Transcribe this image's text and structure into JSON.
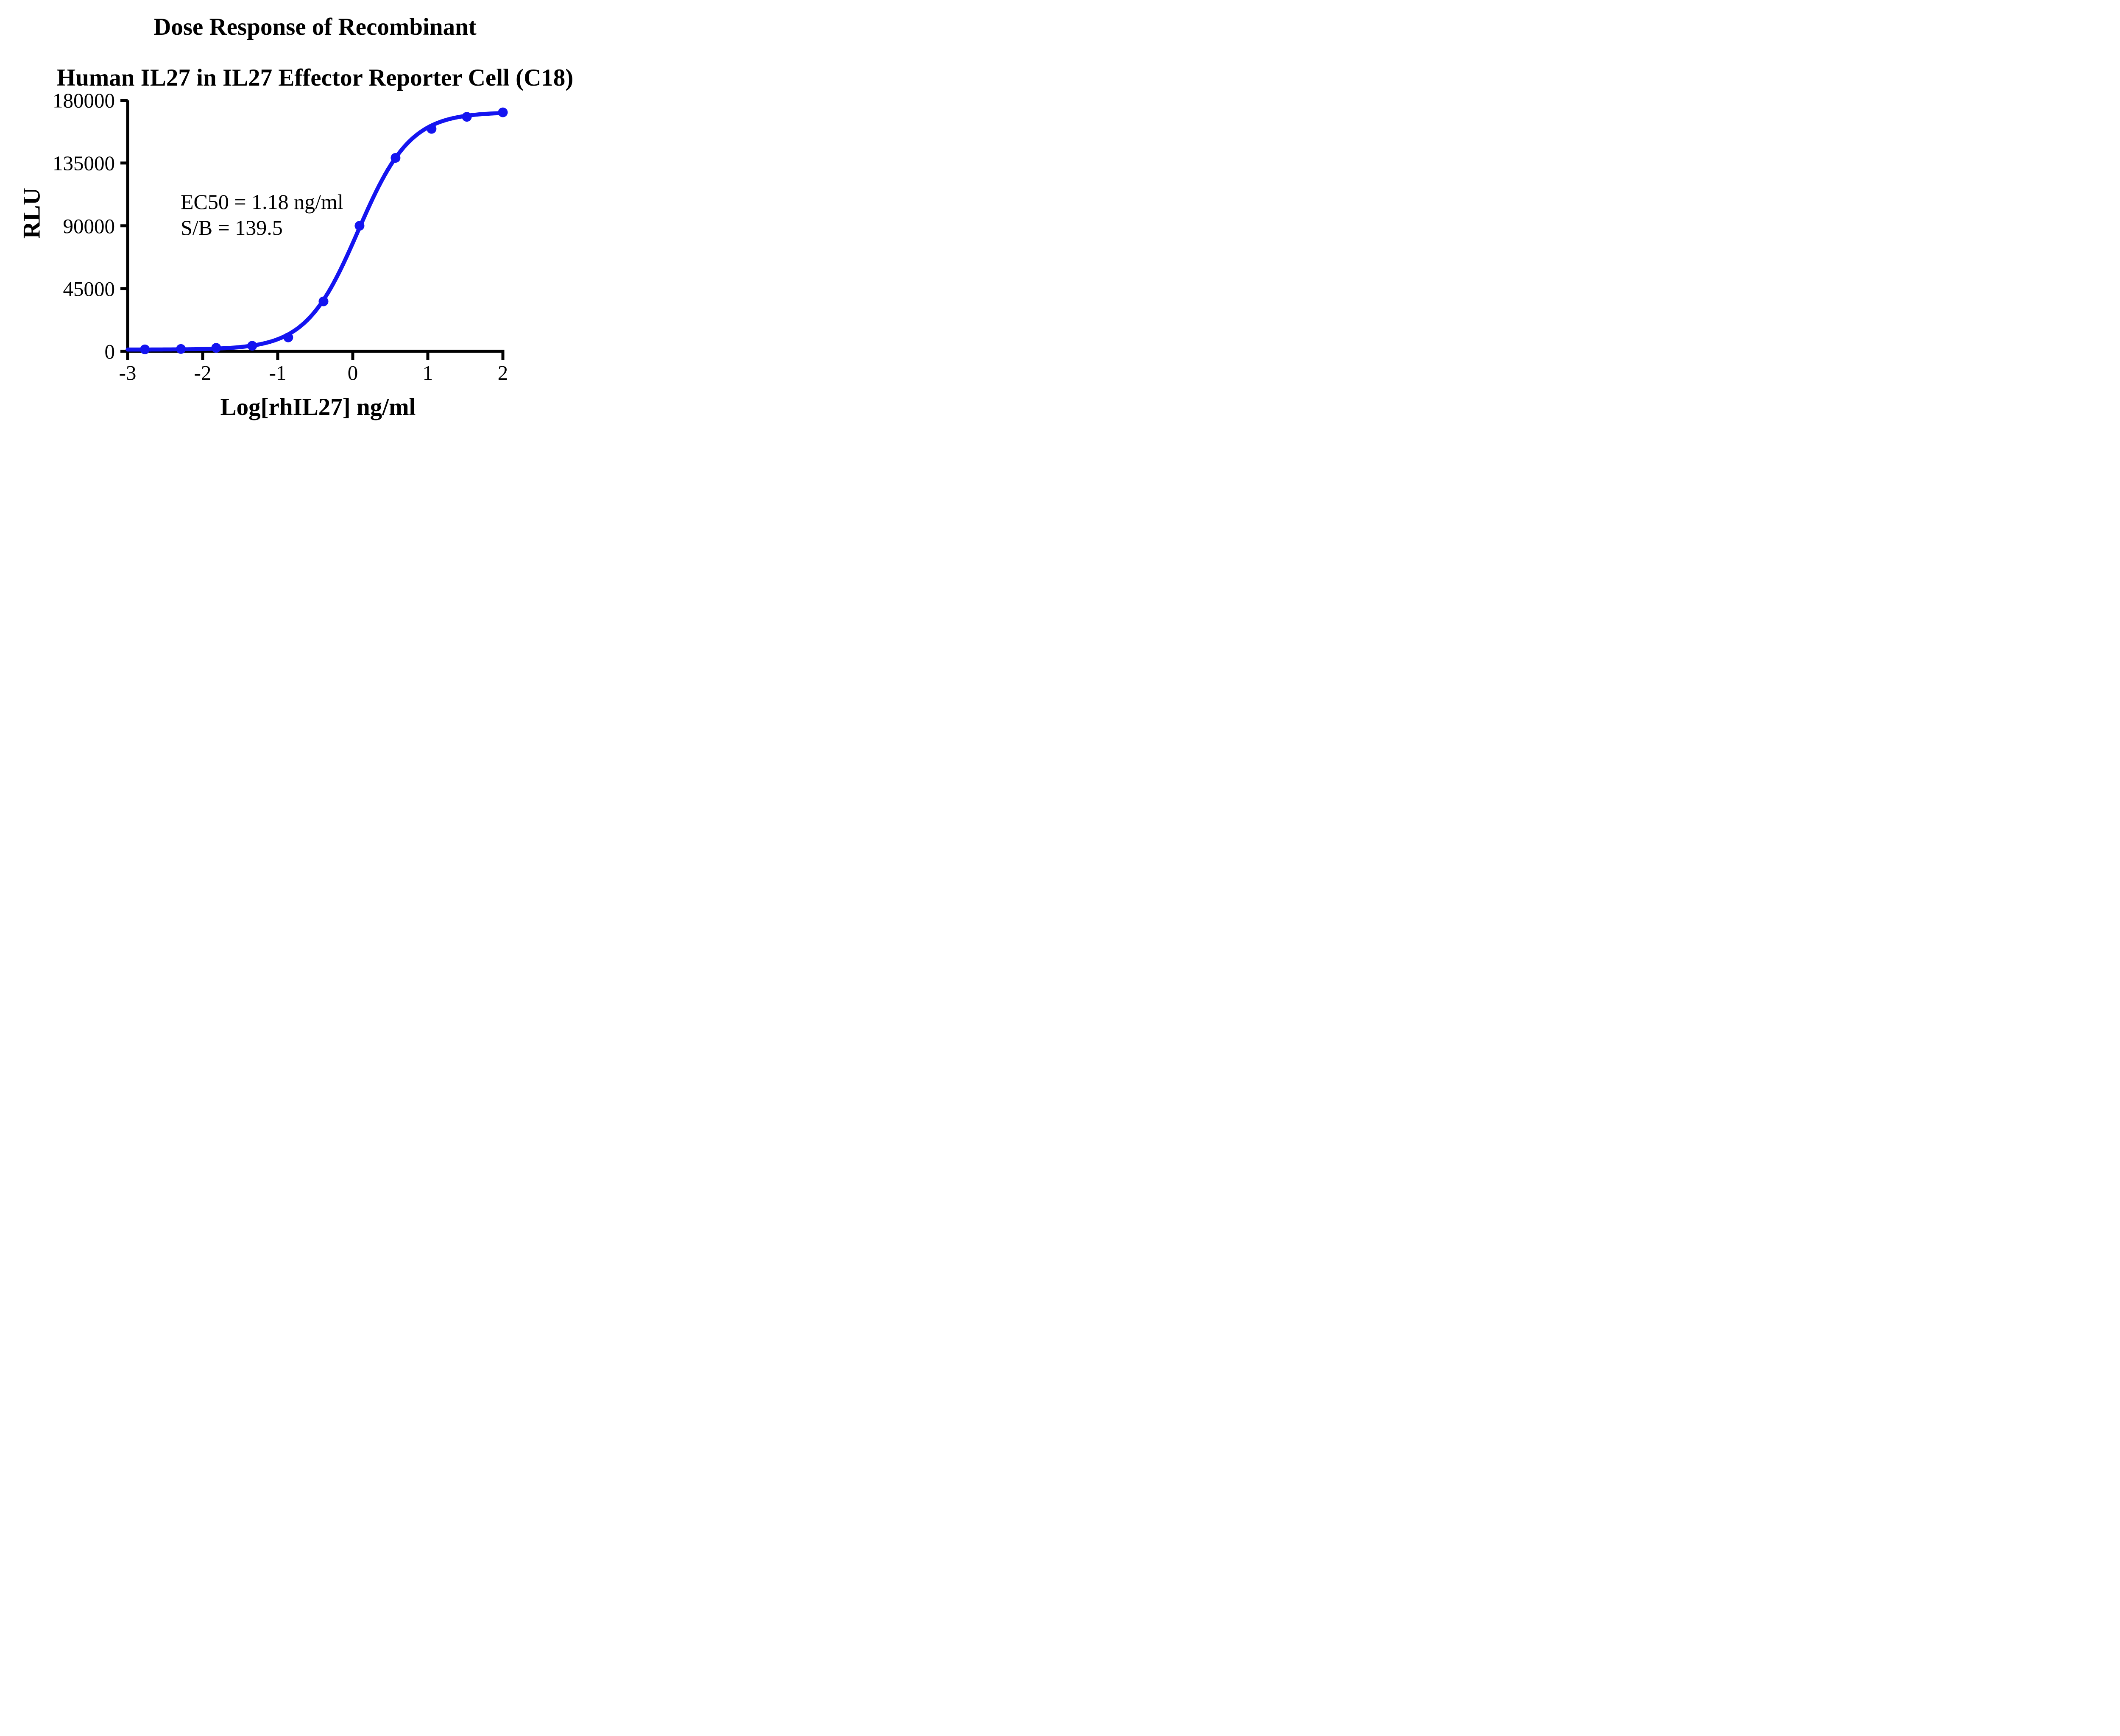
{
  "title": {
    "line1": "Dose Response of Recombinant",
    "line2": "Human IL27 in IL27 Effector Reporter Cell (C18)"
  },
  "annotation": {
    "line1": "EC50 = 1.18 ng/ml",
    "line2": "S/B = 139.5"
  },
  "colors": {
    "curve": "#1414f0",
    "axis": "#000000",
    "text": "#000000",
    "background": "#ffffff"
  },
  "chart_data": {
    "type": "scatter",
    "title": "Dose Response of Recombinant Human IL27 in IL27 Effector Reporter Cell (C18)",
    "xlabel": "Log[rhIL27] ng/ml",
    "ylabel": "RLU",
    "xlim": [
      -3,
      2
    ],
    "ylim": [
      0,
      180000
    ],
    "x_ticks": [
      -3,
      -2,
      -1,
      0,
      1,
      2
    ],
    "y_ticks": [
      0,
      45000,
      90000,
      135000,
      180000
    ],
    "grid": false,
    "legend": false,
    "annotations": [
      "EC50 = 1.18 ng/ml",
      "S/B = 139.5"
    ],
    "series": [
      {
        "name": "rhIL27",
        "marker": "circle",
        "color": "#1414f0",
        "x": [
          -2.77,
          -2.29,
          -1.82,
          -1.34,
          -0.86,
          -0.39,
          0.09,
          0.57,
          1.05,
          1.52,
          2.0
        ],
        "y": [
          1400,
          1700,
          2500,
          4000,
          10000,
          35800,
          90000,
          138700,
          159500,
          168100,
          171300
        ]
      }
    ],
    "fit_curve": {
      "model": "4PL",
      "bottom": 1250,
      "top": 171500,
      "log_ec50": 0.072,
      "hill_slope": 1.25,
      "ec50_ng_ml": 1.18,
      "signal_to_background": 139.5
    }
  }
}
